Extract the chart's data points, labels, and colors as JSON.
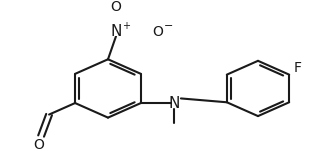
{
  "background_color": "#ffffff",
  "line_color": "#1a1a1a",
  "bond_lw": 1.5,
  "font_size": 9,
  "figsize": [
    3.32,
    1.56
  ],
  "dpi": 100,
  "xlim": [
    0,
    332
  ],
  "ylim": [
    0,
    156
  ]
}
